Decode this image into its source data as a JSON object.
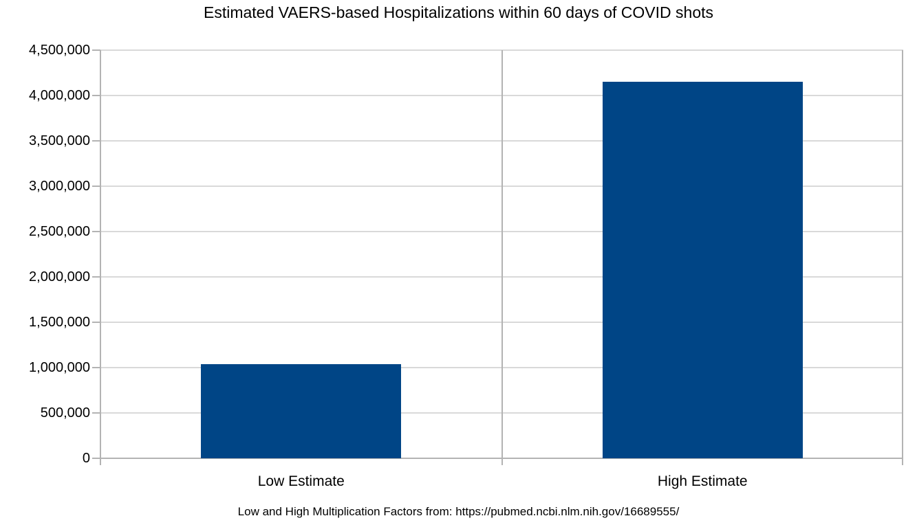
{
  "chart_data": {
    "type": "bar",
    "title": "Estimated VAERS-based Hospitalizations within 60 days of COVID shots",
    "categories": [
      "Low Estimate",
      "High Estimate"
    ],
    "values": [
      1038000,
      4150000
    ],
    "xlabel": "",
    "ylabel": "",
    "ylim": [
      0,
      4500000
    ],
    "ytick_step": 500000,
    "ytick_labels": [
      "0",
      "500,000",
      "1,000,000",
      "1,500,000",
      "2,000,000",
      "2,500,000",
      "3,000,000",
      "3,500,000",
      "4,000,000",
      "4,500,000"
    ],
    "grid": "horizontal-on",
    "legend": "none",
    "footnote": "Low and High Multiplication Factors from: https://pubmed.ncbi.nlm.nih.gov/16689555/",
    "colors": {
      "bar": "#004586",
      "gridline": "#d9d9d9",
      "axis": "#b3b3b3",
      "text": "#000000",
      "background": "#ffffff"
    }
  }
}
